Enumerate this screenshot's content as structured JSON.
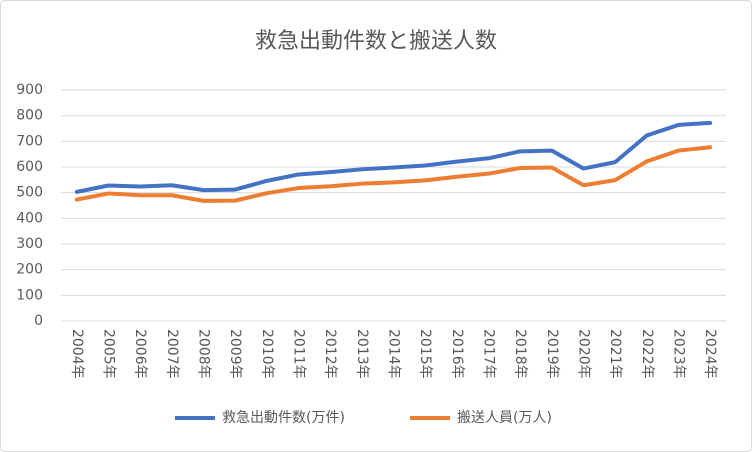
{
  "chart_data": {
    "type": "line",
    "title": "救急出動件数と搬送人数",
    "categories": [
      "2004年",
      "2005年",
      "2006年",
      "2007年",
      "2008年",
      "2009年",
      "2010年",
      "2011年",
      "2012年",
      "2013年",
      "2014年",
      "2015年",
      "2016年",
      "2017年",
      "2018年",
      "2019年",
      "2020年",
      "2021年",
      "2022年",
      "2023年",
      "2024年"
    ],
    "series": [
      {
        "name": "救急出動件数(万件)",
        "color": "#4472c4",
        "values": [
          503,
          528,
          524,
          529,
          510,
          512,
          546,
          571,
          580,
          591,
          598,
          606,
          621,
          634,
          661,
          664,
          594,
          619,
          723,
          764,
          772
        ]
      },
      {
        "name": "搬送人員(万人)",
        "color": "#ed7d31",
        "values": [
          473,
          497,
          490,
          490,
          468,
          469,
          498,
          518,
          525,
          535,
          540,
          548,
          562,
          574,
          596,
          598,
          529,
          549,
          622,
          664,
          677
        ]
      }
    ],
    "ylim": [
      0,
      900
    ],
    "yticks": [
      0,
      100,
      200,
      300,
      400,
      500,
      600,
      700,
      800,
      900
    ],
    "grid": true,
    "legend": "bottom"
  }
}
